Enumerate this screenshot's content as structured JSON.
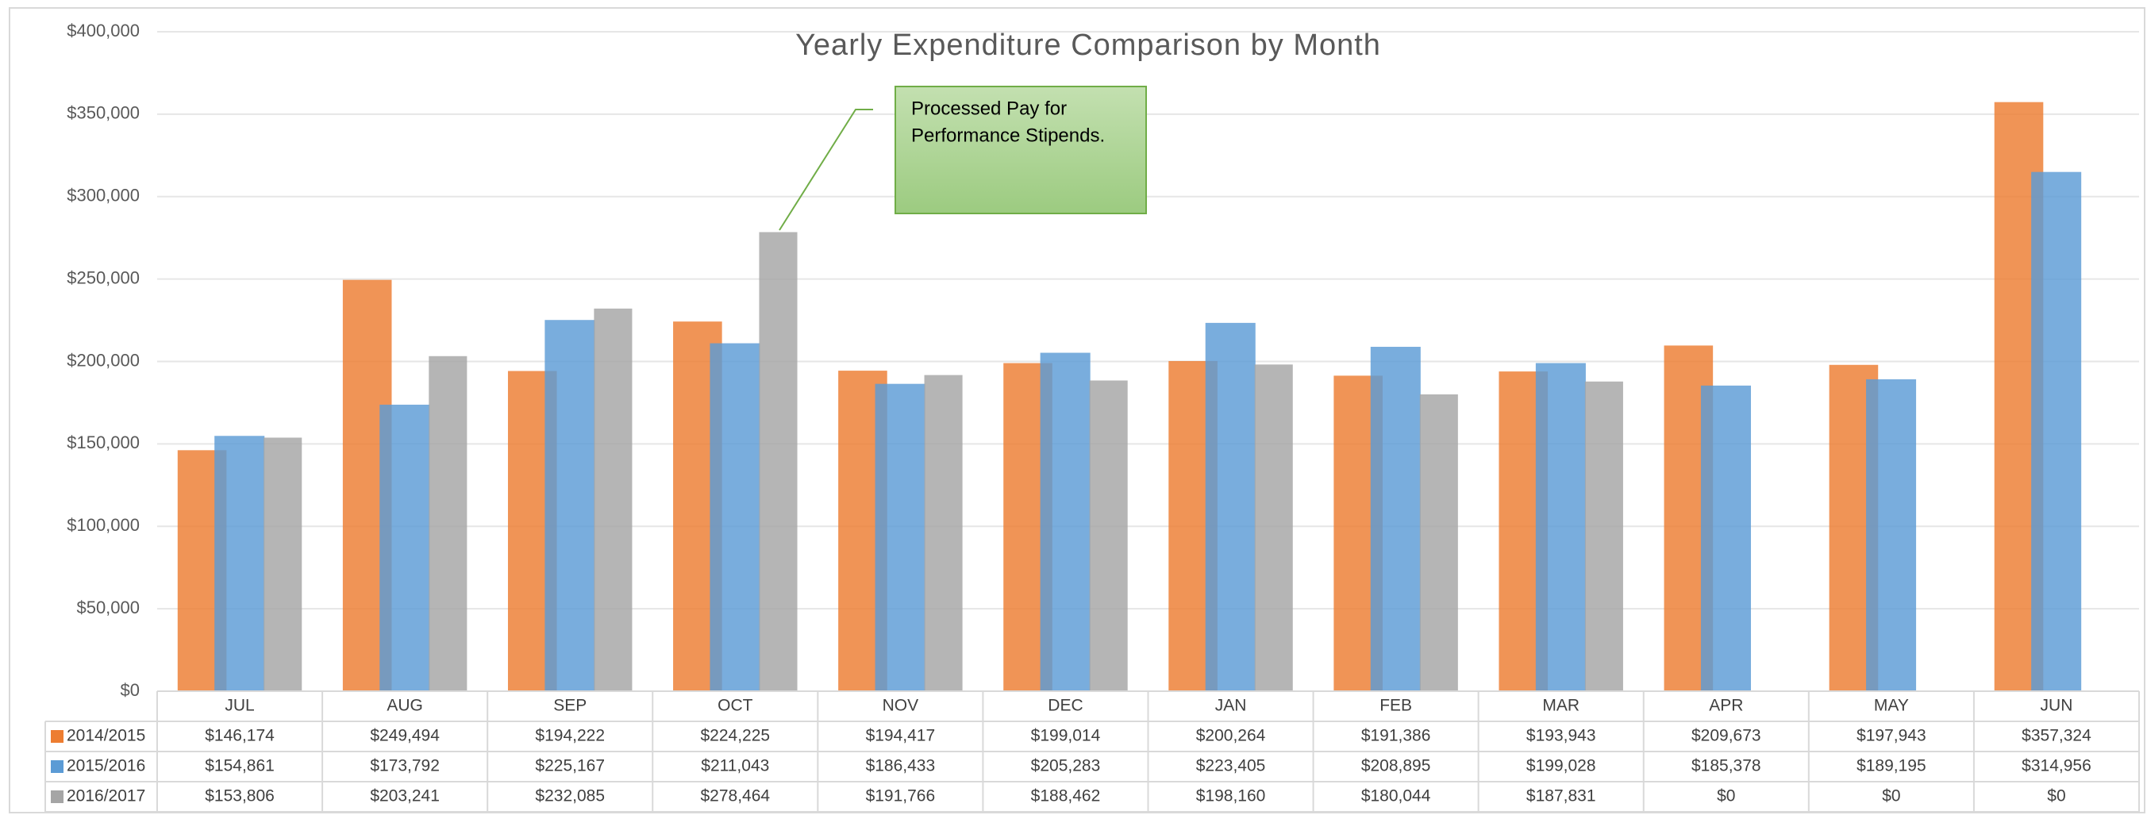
{
  "chart_data": {
    "type": "bar",
    "title": "Yearly Expenditure Comparison by Month",
    "categories": [
      "JUL",
      "AUG",
      "SEP",
      "OCT",
      "NOV",
      "DEC",
      "JAN",
      "FEB",
      "MAR",
      "APR",
      "MAY",
      "JUN"
    ],
    "series": [
      {
        "name": "2014/2015",
        "color": "#ed7d31",
        "values": [
          146174,
          249494,
          194222,
          224225,
          194417,
          199014,
          200264,
          191386,
          193943,
          209673,
          197943,
          357324
        ],
        "value_labels": [
          "$146,174",
          "$249,494",
          "$194,222",
          "$224,225",
          "$194,417",
          "$199,014",
          "$200,264",
          "$191,386",
          "$193,943",
          "$209,673",
          "$197,943",
          "$357,324"
        ]
      },
      {
        "name": "2015/2016",
        "color": "#5b9bd5",
        "values": [
          154861,
          173792,
          225167,
          211043,
          186433,
          205283,
          223405,
          208895,
          199028,
          185378,
          189195,
          314956
        ],
        "value_labels": [
          "$154,861",
          "$173,792",
          "$225,167",
          "$211,043",
          "$186,433",
          "$205,283",
          "$223,405",
          "$208,895",
          "$199,028",
          "$185,378",
          "$189,195",
          "$314,956"
        ]
      },
      {
        "name": "2016/2017",
        "color": "#a5a5a5",
        "values": [
          153806,
          203241,
          232085,
          278464,
          191766,
          188462,
          198160,
          180044,
          187831,
          0,
          0,
          0
        ],
        "value_labels": [
          "$153,806",
          "$203,241",
          "$232,085",
          "$278,464",
          "$191,766",
          "$188,462",
          "$198,160",
          "$180,044",
          "$187,831",
          "$0",
          "$0",
          "$0"
        ]
      }
    ],
    "ylim": [
      0,
      400000
    ],
    "yticks": [
      {
        "value": 0,
        "label": "$0"
      },
      {
        "value": 50000,
        "label": "$50,000"
      },
      {
        "value": 100000,
        "label": "$100,000"
      },
      {
        "value": 150000,
        "label": "$150,000"
      },
      {
        "value": 200000,
        "label": "$200,000"
      },
      {
        "value": 250000,
        "label": "$250,000"
      },
      {
        "value": 300000,
        "label": "$300,000"
      },
      {
        "value": 350000,
        "label": "$350,000"
      },
      {
        "value": 400000,
        "label": "$400,000"
      }
    ],
    "grid": true,
    "annotation": {
      "lines": [
        "Processed Pay for",
        "Performance Stipends."
      ]
    }
  }
}
